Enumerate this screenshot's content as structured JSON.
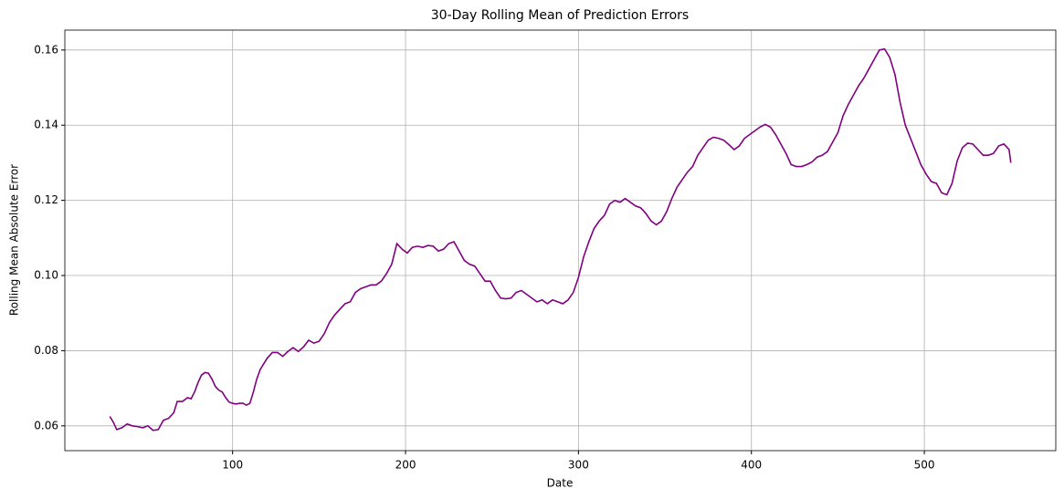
{
  "chart_data": {
    "type": "line",
    "title": "30-Day Rolling Mean of Prediction Errors",
    "x_label": "Date",
    "y_label": "Rolling Mean Absolute Error",
    "x": [
      29,
      31,
      33,
      36,
      39,
      42,
      45,
      48,
      51,
      54,
      57,
      60,
      63,
      66,
      68,
      71,
      74,
      76,
      78,
      80,
      82,
      84,
      86,
      88,
      90,
      92,
      94,
      96,
      98,
      100,
      102,
      104,
      106,
      108,
      110,
      112,
      114,
      116,
      118,
      120,
      123,
      126,
      129,
      132,
      135,
      138,
      141,
      144,
      147,
      150,
      153,
      156,
      159,
      162,
      165,
      168,
      171,
      174,
      177,
      180,
      183,
      186,
      189,
      192,
      195,
      198,
      201,
      204,
      207,
      210,
      213,
      216,
      219,
      222,
      225,
      228,
      231,
      234,
      237,
      240,
      243,
      246,
      249,
      252,
      255,
      258,
      261,
      264,
      267,
      270,
      273,
      276,
      279,
      282,
      285,
      288,
      291,
      294,
      297,
      300,
      303,
      306,
      309,
      312,
      315,
      318,
      321,
      324,
      327,
      330,
      333,
      336,
      339,
      342,
      345,
      348,
      351,
      354,
      357,
      360,
      363,
      366,
      369,
      372,
      375,
      378,
      381,
      384,
      387,
      390,
      393,
      396,
      399,
      402,
      405,
      408,
      411,
      414,
      417,
      420,
      423,
      426,
      429,
      432,
      435,
      438,
      441,
      444,
      447,
      450,
      453,
      456,
      459,
      462,
      465,
      468,
      471,
      474,
      477,
      480,
      483,
      486,
      489,
      492,
      495,
      498,
      501,
      504,
      507,
      510,
      513,
      516,
      519,
      522,
      525,
      528,
      531,
      534,
      537,
      540,
      543,
      546,
      549,
      550
    ],
    "series": [
      {
        "name": "Rolling Mean Absolute Error",
        "color": "#800080",
        "values": [
          0.0625,
          0.061,
          0.059,
          0.0595,
          0.0605,
          0.06,
          0.0598,
          0.0595,
          0.06,
          0.0588,
          0.059,
          0.0615,
          0.062,
          0.0635,
          0.0665,
          0.0665,
          0.0675,
          0.0672,
          0.069,
          0.0715,
          0.0735,
          0.0742,
          0.074,
          0.0725,
          0.0705,
          0.0695,
          0.069,
          0.0675,
          0.0663,
          0.066,
          0.0658,
          0.066,
          0.066,
          0.0655,
          0.066,
          0.069,
          0.0725,
          0.075,
          0.0765,
          0.078,
          0.0795,
          0.0795,
          0.0785,
          0.0798,
          0.0808,
          0.0798,
          0.081,
          0.0828,
          0.082,
          0.0825,
          0.0845,
          0.0875,
          0.0895,
          0.091,
          0.0925,
          0.093,
          0.0955,
          0.0965,
          0.097,
          0.0975,
          0.0975,
          0.0985,
          0.1005,
          0.103,
          0.1085,
          0.107,
          0.106,
          0.1075,
          0.1078,
          0.1075,
          0.108,
          0.1078,
          0.1065,
          0.107,
          0.1085,
          0.109,
          0.1065,
          0.104,
          0.103,
          0.1025,
          0.1005,
          0.0985,
          0.0985,
          0.096,
          0.094,
          0.0938,
          0.094,
          0.0955,
          0.096,
          0.095,
          0.094,
          0.093,
          0.0935,
          0.0925,
          0.0935,
          0.093,
          0.0925,
          0.0935,
          0.0955,
          0.0995,
          0.105,
          0.109,
          0.1125,
          0.1145,
          0.116,
          0.119,
          0.12,
          0.1195,
          0.1205,
          0.1195,
          0.1185,
          0.118,
          0.1165,
          0.1145,
          0.1135,
          0.1145,
          0.117,
          0.1205,
          0.1235,
          0.1255,
          0.1275,
          0.129,
          0.132,
          0.134,
          0.136,
          0.1368,
          0.1365,
          0.136,
          0.1348,
          0.1335,
          0.1345,
          0.1365,
          0.1375,
          0.1385,
          0.1395,
          0.1402,
          0.1395,
          0.1375,
          0.135,
          0.1325,
          0.1295,
          0.129,
          0.129,
          0.1295,
          0.1302,
          0.1315,
          0.132,
          0.133,
          0.1355,
          0.138,
          0.1425,
          0.1455,
          0.148,
          0.1505,
          0.1525,
          0.155,
          0.1575,
          0.16,
          0.1603,
          0.158,
          0.1535,
          0.146,
          0.14,
          0.1365,
          0.133,
          0.1295,
          0.127,
          0.125,
          0.1245,
          0.122,
          0.1215,
          0.1245,
          0.1305,
          0.134,
          0.1352,
          0.135,
          0.1335,
          0.132,
          0.132,
          0.1325,
          0.1345,
          0.135,
          0.1335,
          0.13
        ]
      }
    ],
    "xlim": [
      3,
      576
    ],
    "xticks": [
      100,
      200,
      300,
      400,
      500
    ],
    "ylim": [
      0.0534,
      0.1653
    ],
    "yticks": [
      0.06,
      0.08,
      {
        "value": 0.1,
        "label": "0.10"
      },
      0.12,
      0.14,
      0.16
    ],
    "grid": true
  }
}
